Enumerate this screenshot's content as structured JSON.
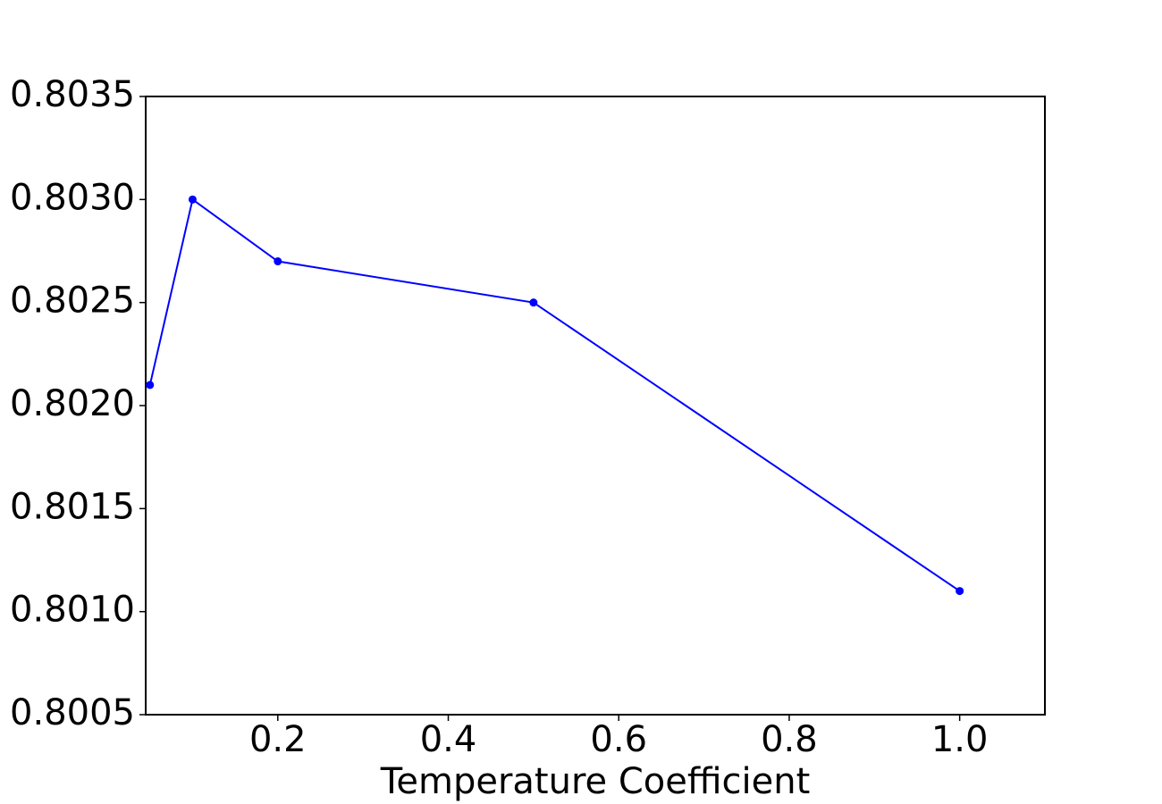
{
  "chart_data": {
    "type": "line",
    "x_label": "Temperature Coefficient",
    "x": [
      0.05,
      0.1,
      0.2,
      0.5,
      1.0
    ],
    "series": [
      {
        "color": "#0000ff",
        "values": [
          0.8021,
          0.803,
          0.8027,
          0.8025,
          0.8011
        ]
      }
    ],
    "xlim": [
      0.045,
      1.1
    ],
    "xticks": [
      0.2,
      0.4,
      0.6,
      0.8,
      {
        "value": 1.0,
        "label": "1.0"
      }
    ],
    "ylim": [
      0.8005,
      0.8035
    ],
    "yticks": [
      {
        "value": 0.8005,
        "label": "0.8005"
      },
      {
        "value": 0.801,
        "label": "0.8010"
      },
      {
        "value": 0.8015,
        "label": "0.8015"
      },
      {
        "value": 0.802,
        "label": "0.8020"
      },
      {
        "value": 0.8025,
        "label": "0.8025"
      },
      {
        "value": 0.803,
        "label": "0.8030"
      },
      {
        "value": 0.8035,
        "label": "0.8035"
      }
    ],
    "grid": false
  }
}
